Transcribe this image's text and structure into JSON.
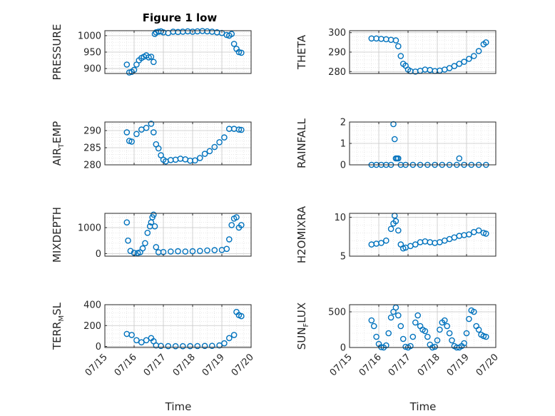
{
  "title": "Figure 1 low",
  "colors": {
    "series": "#0072BD",
    "axis": "#262626",
    "grid": "#d9d9d9"
  },
  "chart_data": [
    {
      "type": "scatter",
      "ylabel": "PRESSURE",
      "ylim": [
        885,
        1015
      ],
      "yticks": [
        900,
        950,
        1000
      ],
      "xlim": [
        "07/15",
        "07/20"
      ],
      "x": [
        "07/15 18:00",
        "07/15 20:00",
        "07/15 22:00",
        "07/16 00:00",
        "07/16 02:00",
        "07/16 04:00",
        "07/16 06:00",
        "07/16 08:00",
        "07/16 10:00",
        "07/16 12:00",
        "07/16 14:00",
        "07/16 16:00",
        "07/16 17:00",
        "07/16 18:00",
        "07/16 20:00",
        "07/16 22:00",
        "07/17 00:00",
        "07/17 04:00",
        "07/17 08:00",
        "07/17 12:00",
        "07/17 16:00",
        "07/17 20:00",
        "07/18 00:00",
        "07/18 04:00",
        "07/18 08:00",
        "07/18 12:00",
        "07/18 16:00",
        "07/18 20:00",
        "07/19 00:00",
        "07/19 04:00",
        "07/19 06:00",
        "07/19 08:00",
        "07/19 10:00",
        "07/19 12:00",
        "07/19 14:00",
        "07/19 16:00"
      ],
      "y": [
        912,
        888,
        890,
        896,
        912,
        925,
        932,
        936,
        940,
        934,
        936,
        920,
        1005,
        1010,
        1012,
        1013,
        1010,
        1008,
        1012,
        1011,
        1012,
        1013,
        1012,
        1013,
        1014,
        1013,
        1012,
        1010,
        1008,
        1002,
        1000,
        1005,
        975,
        960,
        950,
        948
      ]
    },
    {
      "type": "scatter",
      "ylabel": "THETA",
      "ylim": [
        279,
        301
      ],
      "yticks": [
        280,
        290,
        300
      ],
      "xlim": [
        "07/15",
        "07/20"
      ],
      "x": [
        "07/15 18:00",
        "07/15 22:00",
        "07/16 02:00",
        "07/16 06:00",
        "07/16 10:00",
        "07/16 14:00",
        "07/16 16:00",
        "07/16 18:00",
        "07/16 20:00",
        "07/16 22:00",
        "07/17 00:00",
        "07/17 02:00",
        "07/17 06:00",
        "07/17 10:00",
        "07/17 14:00",
        "07/17 18:00",
        "07/17 22:00",
        "07/18 02:00",
        "07/18 06:00",
        "07/18 10:00",
        "07/18 14:00",
        "07/18 18:00",
        "07/18 22:00",
        "07/19 02:00",
        "07/19 06:00",
        "07/19 10:00",
        "07/19 14:00",
        "07/19 16:00"
      ],
      "y": [
        297,
        297,
        296.8,
        296.6,
        296.3,
        296,
        293,
        288,
        284,
        283,
        281,
        280.2,
        280,
        280.4,
        281,
        280.8,
        280.3,
        280.5,
        281,
        281.8,
        282.8,
        284,
        285,
        286.5,
        288,
        290.5,
        294,
        295
      ]
    },
    {
      "type": "scatter",
      "ylabel": "AIR_TEMP",
      "ylim": [
        280,
        292.5
      ],
      "yticks": [
        280,
        285,
        290
      ],
      "xlim": [
        "07/15",
        "07/20"
      ],
      "x": [
        "07/15 18:00",
        "07/15 20:00",
        "07/15 22:00",
        "07/16 02:00",
        "07/16 06:00",
        "07/16 10:00",
        "07/16 14:00",
        "07/16 16:00",
        "07/16 18:00",
        "07/16 20:00",
        "07/16 22:00",
        "07/17 00:00",
        "07/17 02:00",
        "07/17 06:00",
        "07/17 10:00",
        "07/17 14:00",
        "07/17 18:00",
        "07/17 22:00",
        "07/18 02:00",
        "07/18 06:00",
        "07/18 10:00",
        "07/18 14:00",
        "07/18 18:00",
        "07/18 22:00",
        "07/19 02:00",
        "07/19 06:00",
        "07/19 10:00",
        "07/19 14:00",
        "07/19 16:00"
      ],
      "y": [
        289.5,
        287,
        286.8,
        289,
        290.3,
        290.8,
        292,
        289.5,
        286,
        284.8,
        282.8,
        281.5,
        281,
        281.4,
        281.5,
        281.8,
        281.6,
        281.2,
        281.3,
        282,
        283.2,
        284,
        285.2,
        286.6,
        288,
        290.5,
        290.5,
        290.3,
        290.2
      ]
    },
    {
      "type": "scatter",
      "ylabel": "RAINFALL",
      "ylim": [
        0,
        2
      ],
      "yticks": [
        0,
        1,
        2
      ],
      "xlim": [
        "07/15",
        "07/20"
      ],
      "x": [
        "07/15 18:00",
        "07/15 22:00",
        "07/16 02:00",
        "07/16 06:00",
        "07/16 10:00",
        "07/16 12:00",
        "07/16 13:00",
        "07/16 14:00",
        "07/16 15:00",
        "07/16 16:00",
        "07/16 18:00",
        "07/16 22:00",
        "07/17 04:00",
        "07/17 10:00",
        "07/17 16:00",
        "07/17 22:00",
        "07/18 04:00",
        "07/18 10:00",
        "07/18 16:00",
        "07/18 18:00",
        "07/18 22:00",
        "07/19 04:00",
        "07/19 10:00",
        "07/19 16:00"
      ],
      "y": [
        0,
        0,
        0,
        0,
        0,
        1.9,
        1.2,
        0.3,
        0.3,
        0.3,
        0,
        0,
        0,
        0,
        0,
        0,
        0,
        0,
        0,
        0.3,
        0,
        0,
        0,
        0
      ]
    },
    {
      "type": "scatter",
      "ylabel": "MIXDEPTH",
      "ylim": [
        -100,
        1550
      ],
      "yticks": [
        0,
        1000
      ],
      "xlim": [
        "07/15",
        "07/20"
      ],
      "x": [
        "07/15 18:00",
        "07/15 19:00",
        "07/15 21:00",
        "07/16 00:00",
        "07/16 03:00",
        "07/16 05:00",
        "07/16 07:00",
        "07/16 09:00",
        "07/16 11:00",
        "07/16 13:00",
        "07/16 14:00",
        "07/16 15:00",
        "07/16 16:00",
        "07/16 17:00",
        "07/16 18:00",
        "07/16 20:00",
        "07/17 00:00",
        "07/17 06:00",
        "07/17 12:00",
        "07/17 18:00",
        "07/18 00:00",
        "07/18 06:00",
        "07/18 12:00",
        "07/18 18:00",
        "07/19 00:00",
        "07/19 04:00",
        "07/19 06:00",
        "07/19 08:00",
        "07/19 10:00",
        "07/19 12:00",
        "07/19 14:00",
        "07/19 16:00"
      ],
      "y": [
        1200,
        500,
        100,
        30,
        20,
        50,
        200,
        400,
        800,
        1050,
        1200,
        1400,
        1500,
        1050,
        250,
        50,
        60,
        80,
        90,
        80,
        90,
        100,
        120,
        130,
        140,
        180,
        550,
        1100,
        1350,
        1400,
        1000,
        1100
      ]
    },
    {
      "type": "scatter",
      "ylabel": "H2OMIXRA",
      "ylim": [
        5,
        10.5
      ],
      "yticks": [
        5,
        10
      ],
      "xlim": [
        "07/15",
        "07/20"
      ],
      "x": [
        "07/15 18:00",
        "07/15 22:00",
        "07/16 02:00",
        "07/16 06:00",
        "07/16 10:00",
        "07/16 12:00",
        "07/16 13:00",
        "07/16 14:00",
        "07/16 16:00",
        "07/16 18:00",
        "07/16 20:00",
        "07/16 22:00",
        "07/17 02:00",
        "07/17 06:00",
        "07/17 10:00",
        "07/17 14:00",
        "07/17 18:00",
        "07/17 22:00",
        "07/18 02:00",
        "07/18 06:00",
        "07/18 10:00",
        "07/18 14:00",
        "07/18 18:00",
        "07/18 22:00",
        "07/19 02:00",
        "07/19 06:00",
        "07/19 10:00",
        "07/19 14:00",
        "07/19 16:00"
      ],
      "y": [
        6.5,
        6.6,
        6.7,
        7,
        8.5,
        9.2,
        10.2,
        9.5,
        8.3,
        6.5,
        6,
        6.1,
        6.3,
        6.5,
        6.8,
        6.9,
        6.8,
        6.7,
        6.8,
        7,
        7.2,
        7.4,
        7.6,
        7.7,
        7.8,
        8.1,
        8.3,
        8,
        7.9
      ]
    },
    {
      "type": "scatter",
      "ylabel": "TERR_MSL",
      "ylim": [
        -10,
        400
      ],
      "yticks": [
        0,
        200,
        400
      ],
      "xlim": [
        "07/15",
        "07/20"
      ],
      "x": [
        "07/15 18:00",
        "07/15 22:00",
        "07/16 02:00",
        "07/16 06:00",
        "07/16 10:00",
        "07/16 14:00",
        "07/16 16:00",
        "07/16 18:00",
        "07/16 22:00",
        "07/17 04:00",
        "07/17 10:00",
        "07/17 16:00",
        "07/17 22:00",
        "07/18 04:00",
        "07/18 10:00",
        "07/18 16:00",
        "07/18 22:00",
        "07/19 02:00",
        "07/19 06:00",
        "07/19 10:00",
        "07/19 12:00",
        "07/19 14:00",
        "07/19 16:00"
      ],
      "y": [
        120,
        110,
        60,
        40,
        60,
        80,
        50,
        10,
        5,
        3,
        2,
        2,
        3,
        4,
        5,
        6,
        10,
        30,
        80,
        110,
        330,
        300,
        290
      ]
    },
    {
      "type": "scatter",
      "ylabel": "SUN_FLUX",
      "ylim": [
        0,
        600
      ],
      "yticks": [
        0,
        500
      ],
      "xlim": [
        "07/15",
        "07/20"
      ],
      "x": [
        "07/15 18:00",
        "07/15 20:00",
        "07/15 22:00",
        "07/16 00:00",
        "07/16 02:00",
        "07/16 04:00",
        "07/16 06:00",
        "07/16 08:00",
        "07/16 10:00",
        "07/16 12:00",
        "07/16 14:00",
        "07/16 16:00",
        "07/16 18:00",
        "07/16 20:00",
        "07/16 22:00",
        "07/17 00:00",
        "07/17 02:00",
        "07/17 04:00",
        "07/17 06:00",
        "07/17 08:00",
        "07/17 10:00",
        "07/17 12:00",
        "07/17 14:00",
        "07/17 16:00",
        "07/17 18:00",
        "07/17 20:00",
        "07/17 22:00",
        "07/18 00:00",
        "07/18 02:00",
        "07/18 04:00",
        "07/18 06:00",
        "07/18 08:00",
        "07/18 10:00",
        "07/18 12:00",
        "07/18 14:00",
        "07/18 16:00",
        "07/18 18:00",
        "07/18 20:00",
        "07/18 22:00",
        "07/19 00:00",
        "07/19 02:00",
        "07/19 04:00",
        "07/19 06:00",
        "07/19 08:00",
        "07/19 10:00",
        "07/19 12:00",
        "07/19 14:00",
        "07/19 16:00"
      ],
      "y": [
        380,
        300,
        150,
        50,
        5,
        0,
        30,
        200,
        420,
        500,
        560,
        450,
        300,
        120,
        10,
        0,
        20,
        150,
        350,
        450,
        300,
        250,
        230,
        150,
        40,
        0,
        10,
        100,
        250,
        350,
        380,
        300,
        200,
        100,
        20,
        0,
        0,
        20,
        60,
        200,
        400,
        520,
        500,
        300,
        250,
        180,
        160,
        150
      ]
    }
  ],
  "xticks": [
    "07/15",
    "07/16",
    "07/17",
    "07/18",
    "07/19",
    "07/20"
  ],
  "xlabels": [
    "Time",
    "Time"
  ]
}
